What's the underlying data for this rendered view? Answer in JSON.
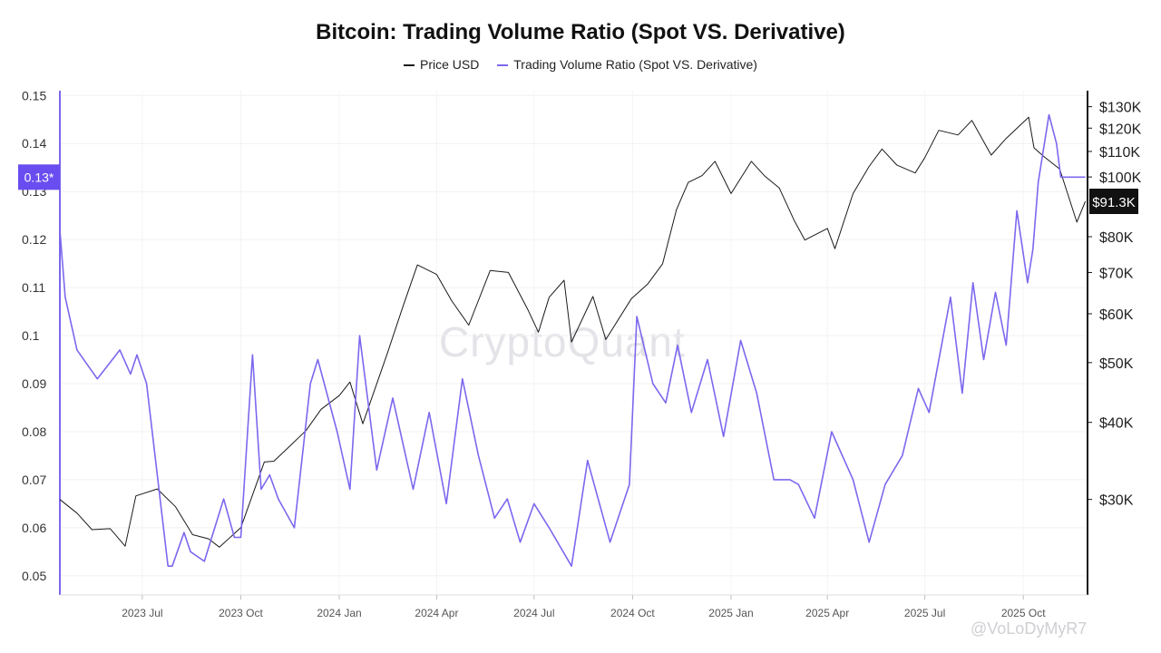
{
  "chart_data": {
    "type": "line",
    "title": "Bitcoin: Trading Volume Ratio (Spot VS. Derivative)",
    "legend_position": "top-center",
    "grid": true,
    "colors": {
      "price": "#1a1a1a",
      "ratio": "#7b68ee",
      "marker_ratio": "#6a4df0",
      "marker_price": "#111111"
    },
    "x_axis": {
      "type": "date",
      "range": [
        "2023-04-15",
        "2025-11-30"
      ],
      "ticks": [
        {
          "label": "2023 Jul",
          "date": "2023-07-01"
        },
        {
          "label": "2023 Oct",
          "date": "2023-10-01"
        },
        {
          "label": "2024 Jan",
          "date": "2024-01-01"
        },
        {
          "label": "2024 Apr",
          "date": "2024-04-01"
        },
        {
          "label": "2024 Jul",
          "date": "2024-07-01"
        },
        {
          "label": "2024 Oct",
          "date": "2024-10-01"
        },
        {
          "label": "2025 Jan",
          "date": "2025-01-01"
        },
        {
          "label": "2025 Apr",
          "date": "2025-04-01"
        },
        {
          "label": "2025 Jul",
          "date": "2025-07-01"
        },
        {
          "label": "2025 Oct",
          "date": "2025-10-01"
        }
      ]
    },
    "y_left": {
      "range": [
        0.046,
        0.151
      ],
      "ticks": [
        "0.15",
        "0.14",
        "0.13",
        "0.12",
        "0.11",
        "0.1",
        "0.09",
        "0.08",
        "0.07",
        "0.06",
        "0.05"
      ]
    },
    "y_right": {
      "scale": "log",
      "range": [
        21000,
        138000
      ],
      "ticks": [
        "$130K",
        "$120K",
        "$110K",
        "$100K",
        "$80K",
        "$70K",
        "$60K",
        "$50K",
        "$40K",
        "$30K"
      ],
      "tick_values": [
        130000,
        120000,
        110000,
        100000,
        80000,
        70000,
        60000,
        50000,
        40000,
        30000
      ]
    },
    "markers": {
      "left_label": "0.13*",
      "left_value": 0.133,
      "right_label": "$91.3K",
      "right_value": 91300
    },
    "series": [
      {
        "name": "Price USD",
        "axis": "right",
        "x": [
          "2023-04-15",
          "2023-05-01",
          "2023-05-15",
          "2023-06-01",
          "2023-06-15",
          "2023-06-25",
          "2023-07-15",
          "2023-08-01",
          "2023-08-17",
          "2023-09-01",
          "2023-09-11",
          "2023-10-01",
          "2023-10-23",
          "2023-11-01",
          "2023-11-15",
          "2023-12-01",
          "2023-12-15",
          "2024-01-01",
          "2024-01-11",
          "2024-01-23",
          "2024-02-15",
          "2024-03-01",
          "2024-03-14",
          "2024-04-01",
          "2024-04-15",
          "2024-05-01",
          "2024-05-21",
          "2024-06-07",
          "2024-06-25",
          "2024-07-05",
          "2024-07-15",
          "2024-07-29",
          "2024-08-05",
          "2024-08-25",
          "2024-09-06",
          "2024-09-30",
          "2024-10-15",
          "2024-10-29",
          "2024-11-11",
          "2024-11-22",
          "2024-12-05",
          "2024-12-17",
          "2025-01-01",
          "2025-01-20",
          "2025-02-01",
          "2025-02-15",
          "2025-03-01",
          "2025-03-11",
          "2025-04-01",
          "2025-04-08",
          "2025-04-25",
          "2025-05-10",
          "2025-05-22",
          "2025-06-05",
          "2025-06-22",
          "2025-07-01",
          "2025-07-14",
          "2025-08-01",
          "2025-08-14",
          "2025-09-01",
          "2025-09-15",
          "2025-10-06",
          "2025-10-11",
          "2025-10-20",
          "2025-11-04",
          "2025-11-20",
          "2025-11-28"
        ],
        "y": [
          30000,
          28500,
          26800,
          26900,
          25200,
          30400,
          31200,
          29200,
          26300,
          25900,
          25100,
          27000,
          34500,
          34600,
          36500,
          38800,
          42000,
          44200,
          46500,
          39800,
          51800,
          62000,
          72000,
          69500,
          63000,
          57500,
          70500,
          70000,
          61000,
          56000,
          63800,
          68000,
          54000,
          64000,
          54500,
          63500,
          67000,
          72300,
          88500,
          98000,
          100500,
          106000,
          94000,
          106000,
          100500,
          96000,
          85000,
          79000,
          82500,
          76500,
          94000,
          104000,
          111000,
          104500,
          101500,
          107500,
          119000,
          117000,
          123500,
          108500,
          115500,
          125000,
          111500,
          108000,
          103000,
          84500,
          91300
        ]
      },
      {
        "name": "Trading Volume Ratio (Spot VS. Derivative)",
        "axis": "left",
        "x": [
          "2023-04-15",
          "2023-04-20",
          "2023-05-01",
          "2023-05-20",
          "2023-06-10",
          "2023-06-20",
          "2023-06-26",
          "2023-07-05",
          "2023-07-25",
          "2023-07-29",
          "2023-08-09",
          "2023-08-15",
          "2023-08-28",
          "2023-09-15",
          "2023-09-25",
          "2023-10-01",
          "2023-10-12",
          "2023-10-20",
          "2023-10-28",
          "2023-11-05",
          "2023-11-20",
          "2023-12-05",
          "2023-12-12",
          "2023-12-30",
          "2024-01-11",
          "2024-01-20",
          "2024-02-05",
          "2024-02-20",
          "2024-03-10",
          "2024-03-25",
          "2024-04-10",
          "2024-04-25",
          "2024-05-10",
          "2024-05-25",
          "2024-06-06",
          "2024-06-18",
          "2024-07-01",
          "2024-07-15",
          "2024-08-05",
          "2024-08-20",
          "2024-09-10",
          "2024-09-28",
          "2024-10-05",
          "2024-10-20",
          "2024-11-01",
          "2024-11-12",
          "2024-11-25",
          "2024-12-10",
          "2024-12-25",
          "2025-01-10",
          "2025-01-25",
          "2025-02-10",
          "2025-02-25",
          "2025-03-05",
          "2025-03-20",
          "2025-04-05",
          "2025-04-25",
          "2025-05-10",
          "2025-05-25",
          "2025-06-10",
          "2025-06-25",
          "2025-07-05",
          "2025-07-15",
          "2025-07-25",
          "2025-08-05",
          "2025-08-15",
          "2025-08-25",
          "2025-09-05",
          "2025-09-15",
          "2025-09-25",
          "2025-10-05",
          "2025-10-10",
          "2025-10-15",
          "2025-10-25",
          "2025-11-01",
          "2025-11-05",
          "2025-11-12",
          "2025-11-20",
          "2025-11-28"
        ],
        "y": [
          0.122,
          0.108,
          0.097,
          0.091,
          0.097,
          0.092,
          0.096,
          0.09,
          0.052,
          0.052,
          0.059,
          0.055,
          0.053,
          0.066,
          0.058,
          0.058,
          0.096,
          0.068,
          0.071,
          0.066,
          0.06,
          0.09,
          0.095,
          0.08,
          0.068,
          0.1,
          0.072,
          0.087,
          0.068,
          0.084,
          0.065,
          0.091,
          0.075,
          0.062,
          0.066,
          0.057,
          0.065,
          0.06,
          0.052,
          0.074,
          0.057,
          0.069,
          0.104,
          0.09,
          0.086,
          0.098,
          0.084,
          0.095,
          0.079,
          0.099,
          0.088,
          0.07,
          0.07,
          0.069,
          0.062,
          0.08,
          0.07,
          0.057,
          0.069,
          0.075,
          0.089,
          0.084,
          0.096,
          0.108,
          0.088,
          0.111,
          0.095,
          0.109,
          0.098,
          0.126,
          0.111,
          0.118,
          0.132,
          0.146,
          0.14,
          0.133,
          0.133,
          0.133,
          0.133
        ]
      }
    ]
  },
  "watermark": "CryptoQuant",
  "author_watermark": "@VoLoDyMyR7"
}
